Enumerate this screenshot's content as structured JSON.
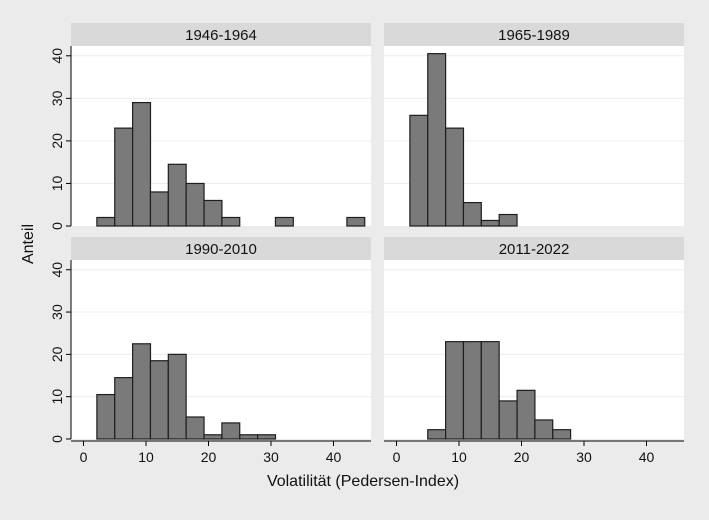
{
  "chart_data": {
    "type": "bar",
    "xlabel": "Volatilität (Pedersen-Index)",
    "ylabel": "Anteil",
    "xlim": [
      -2,
      46
    ],
    "ylim": [
      0,
      40
    ],
    "xticks": [
      0,
      10,
      20,
      30,
      40
    ],
    "yticks": [
      0,
      10,
      20,
      30,
      40
    ],
    "bin_width": 2.857,
    "grid": true,
    "panels": [
      {
        "title": "1946-1964",
        "bins_start": [
          2.14,
          5.0,
          7.86,
          10.71,
          13.57,
          16.43,
          19.29,
          22.14,
          30.71,
          42.14
        ],
        "values": [
          2,
          23,
          29,
          8,
          14.5,
          10,
          6,
          2,
          2,
          2
        ]
      },
      {
        "title": "1965-1989",
        "bins_start": [
          2.14,
          5.0,
          7.86,
          10.71,
          13.57,
          16.43
        ],
        "values": [
          26,
          40.5,
          23,
          5.5,
          1.3,
          2.7
        ]
      },
      {
        "title": "1990-2010",
        "bins_start": [
          2.14,
          5.0,
          7.86,
          10.71,
          13.57,
          16.43,
          19.29,
          22.14,
          25.0,
          27.86
        ],
        "values": [
          10.5,
          14.5,
          22.5,
          18.5,
          20,
          5.2,
          1,
          3.8,
          1,
          1
        ]
      },
      {
        "title": "2011-2022",
        "bins_start": [
          5.0,
          7.86,
          10.71,
          13.57,
          16.43,
          19.29,
          22.14,
          25.0
        ],
        "values": [
          2.2,
          23,
          23,
          23,
          9,
          11.5,
          4.5,
          2.2
        ]
      }
    ]
  }
}
